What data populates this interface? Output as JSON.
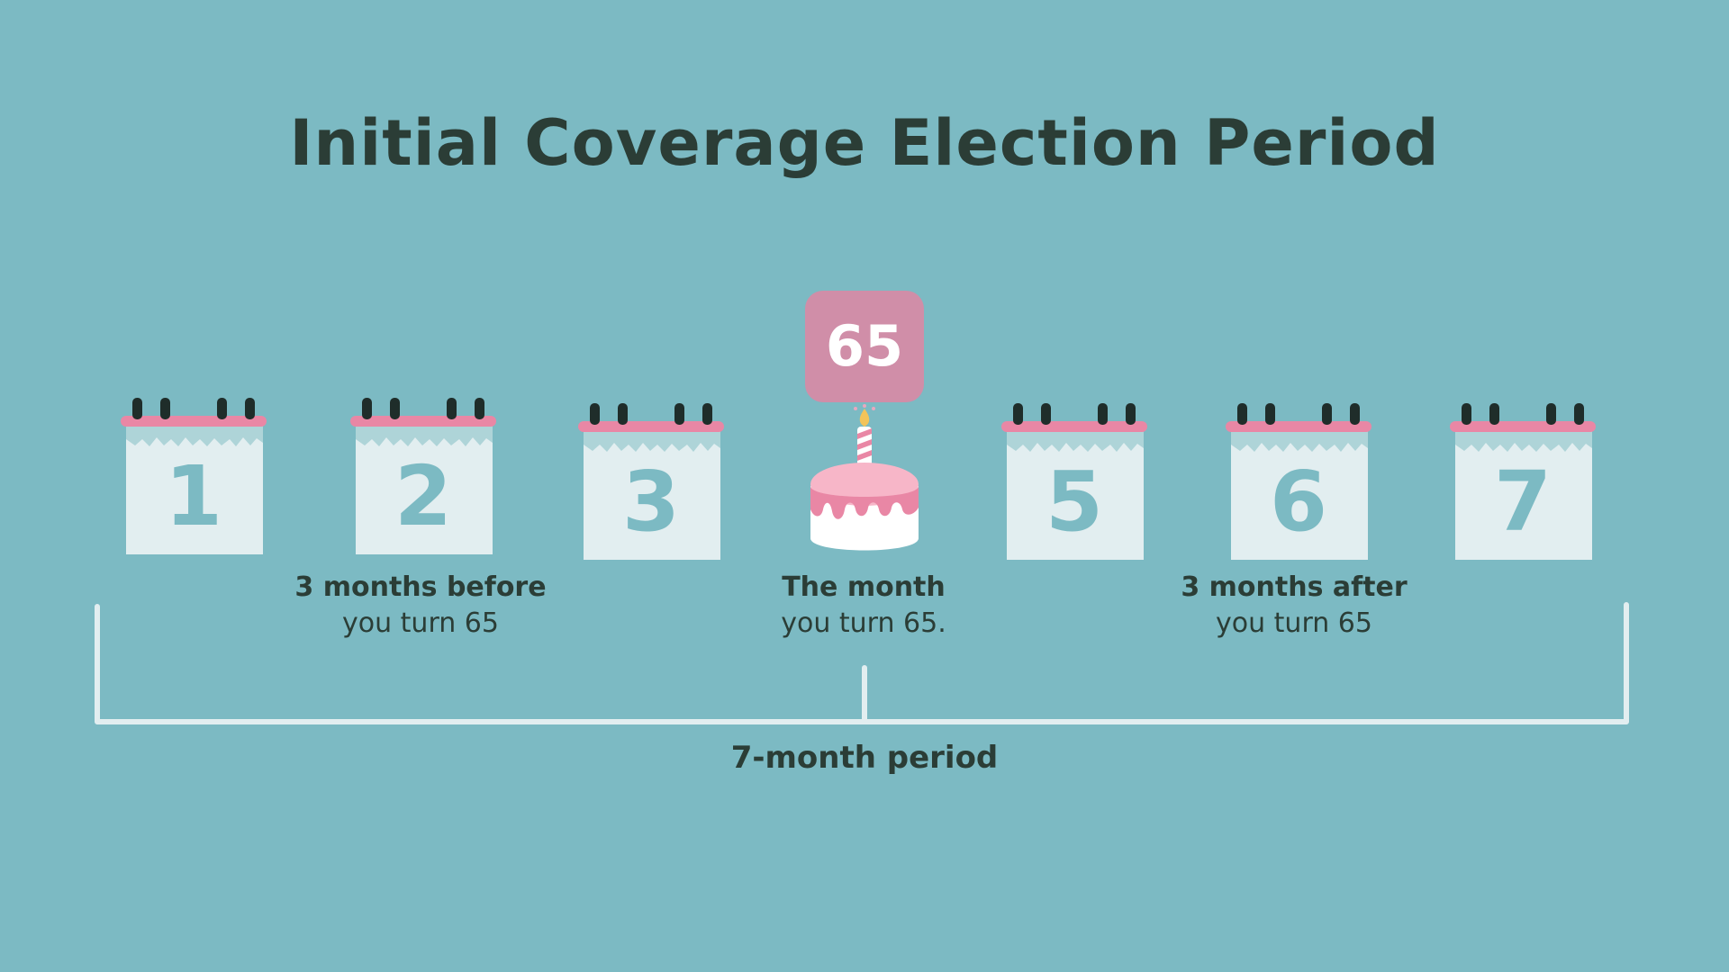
{
  "title": "Initial Coverage Election Period",
  "calendars": [
    {
      "number": "1"
    },
    {
      "number": "2"
    },
    {
      "number": "3"
    },
    {
      "number": "5"
    },
    {
      "number": "6"
    },
    {
      "number": "7"
    }
  ],
  "birthday": {
    "badge": "65",
    "icon": "birthday-cake-icon"
  },
  "captions": {
    "before": {
      "bold": "3 months before",
      "regular": "you turn 65"
    },
    "month": {
      "bold": "The month",
      "regular": "you turn 65."
    },
    "after": {
      "bold": "3 months after",
      "regular": "you turn 65"
    }
  },
  "period_label": "7-month period",
  "colors": {
    "background": "#7cbac3",
    "text": "#2b3d36",
    "calendar_page": "#e2eef0",
    "calendar_binding": "#e987a5",
    "badge": "#d08ea8",
    "bracket": "#e2eef0"
  }
}
